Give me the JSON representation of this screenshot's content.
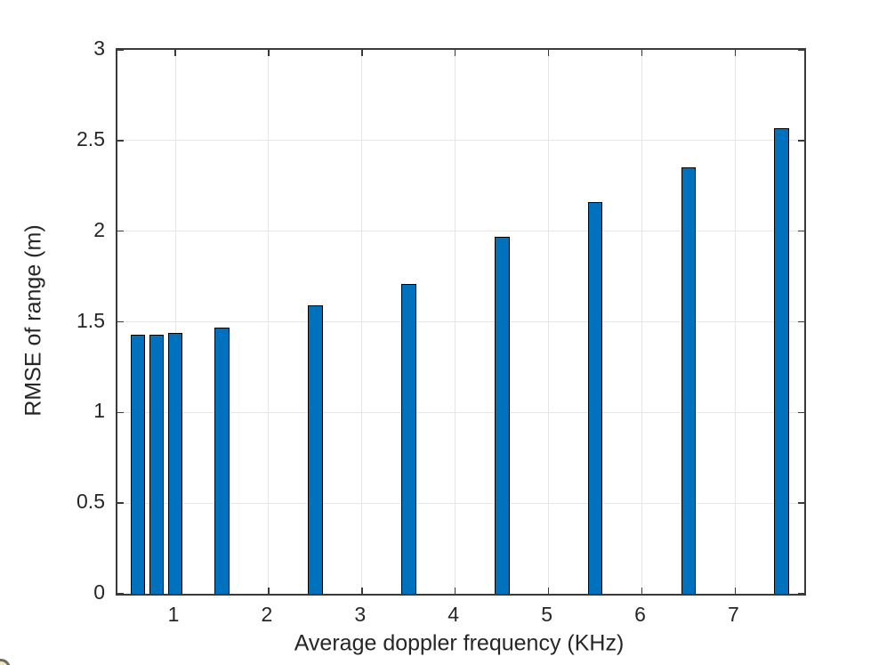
{
  "chart_data": {
    "type": "bar",
    "title": "",
    "xlabel": "Average doppler frequency (KHz)",
    "ylabel": "RMSE of range (m)",
    "x": [
      0.6,
      0.8,
      1.0,
      1.5,
      2.5,
      3.5,
      4.5,
      5.5,
      6.5,
      7.5
    ],
    "values": [
      1.43,
      1.43,
      1.44,
      1.47,
      1.59,
      1.71,
      1.97,
      2.16,
      2.35,
      2.57
    ],
    "bar_width_data_units": 0.16,
    "xlim": [
      0.38,
      7.74
    ],
    "ylim": [
      0,
      3
    ],
    "xticks": [
      1,
      2,
      3,
      4,
      5,
      6,
      7
    ],
    "xticklabels": [
      "1",
      "2",
      "3",
      "4",
      "5",
      "6",
      "7"
    ],
    "yticks": [
      0,
      0.5,
      1,
      1.5,
      2,
      2.5,
      3
    ],
    "yticklabels": [
      "0",
      "0.5",
      "1",
      "1.5",
      "2",
      "2.5",
      "3"
    ],
    "grid": true,
    "legend": null,
    "colors": {
      "bar_fill": "#0072BD",
      "bar_edge": "#000000",
      "grid": "#e6e6e6",
      "axis_box": "#3a3a3a",
      "text": "#262626",
      "background": "#ffffff"
    }
  },
  "decorations": {
    "corner_icon": "partial-circle-icon"
  }
}
